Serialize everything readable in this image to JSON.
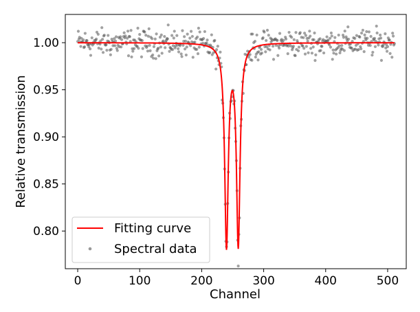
{
  "chart_data": {
    "type": "scatter",
    "xlabel": "Channel",
    "ylabel": "Relative transmission",
    "xlim": [
      -20,
      530
    ],
    "ylim": [
      0.76,
      1.03
    ],
    "x_ticks": [
      0,
      100,
      200,
      300,
      400,
      500
    ],
    "y_ticks": [
      0.8,
      0.85,
      0.9,
      0.95,
      1.0
    ],
    "legend_placement": "lower-left",
    "grid": false,
    "series": [
      {
        "name": "Fitting curve",
        "kind": "line",
        "color": "#ff0000",
        "model": {
          "baseline": 1.0,
          "dips": [
            {
              "center": 240,
              "depth": 0.213,
              "hwhm": 3.5
            },
            {
              "center": 259,
              "depth": 0.212,
              "hwhm": 3.5
            }
          ],
          "x_range": [
            0,
            511
          ]
        }
      },
      {
        "name": "Spectral data",
        "kind": "scatter",
        "color": "#555555",
        "noise_amplitude": 0.012,
        "n_points": 512
      }
    ]
  }
}
